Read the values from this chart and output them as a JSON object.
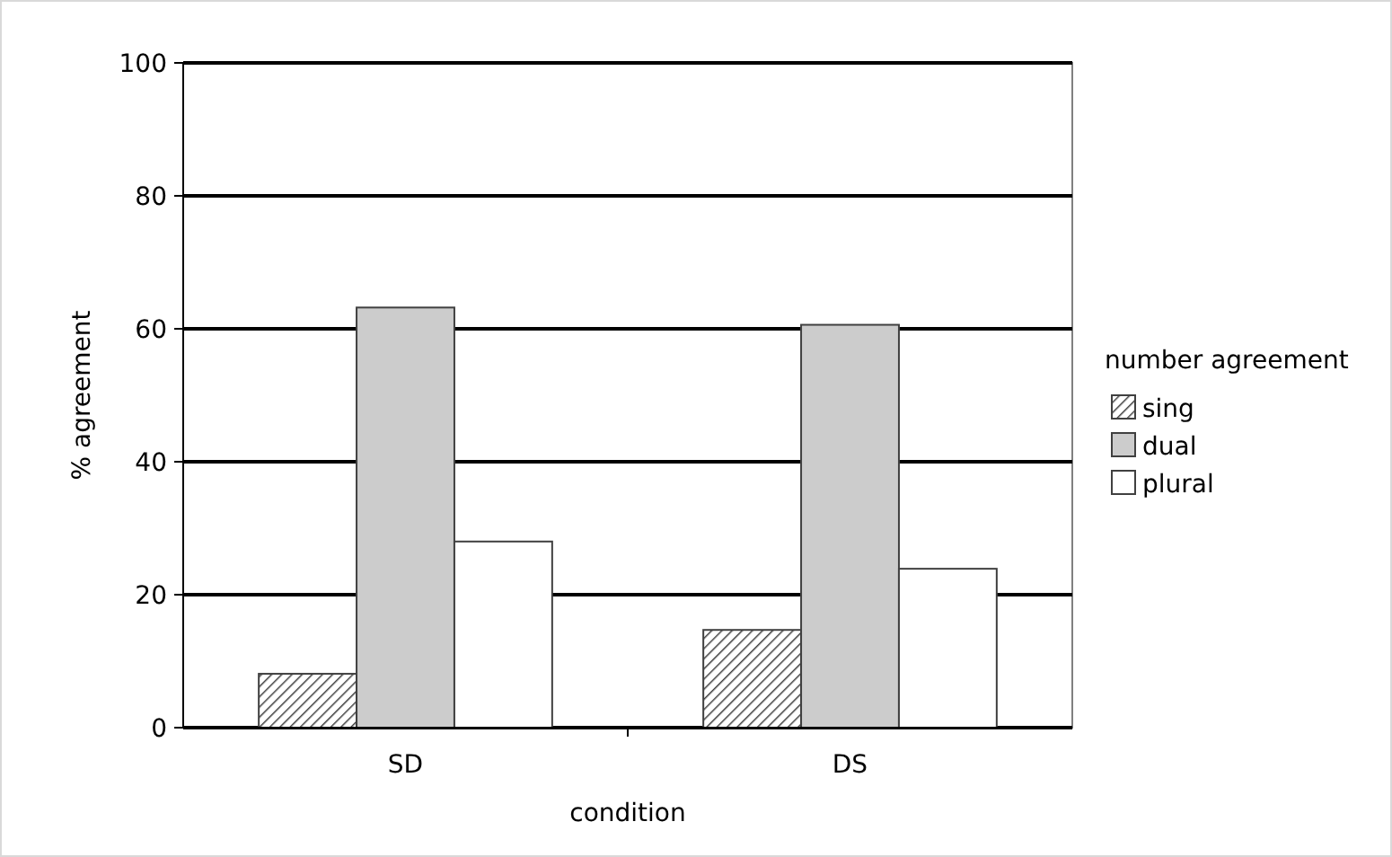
{
  "chart_data": {
    "type": "bar",
    "xlabel": "condition",
    "ylabel": "% agreement",
    "legend_title": "number agreement",
    "categories": [
      "SD",
      "DS"
    ],
    "series": [
      {
        "name": "sing",
        "color": "#404040",
        "values": [
          8.1,
          14.7
        ]
      },
      {
        "name": "dual",
        "color": "#cccccc",
        "values": [
          63.2,
          60.6
        ]
      },
      {
        "name": "plural",
        "color": "#ffffff",
        "values": [
          28.0,
          23.9
        ]
      }
    ],
    "ylim": [
      0,
      100
    ],
    "yticks": [
      0,
      20,
      40,
      60,
      80,
      100
    ],
    "grid": "y",
    "legend": "right"
  }
}
